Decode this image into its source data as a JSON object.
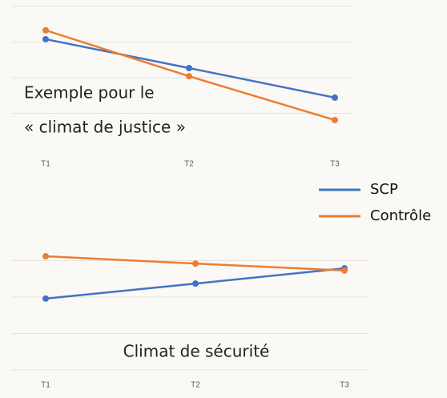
{
  "chart_data": [
    {
      "type": "line",
      "annotations": [
        "Exemple pour le",
        "« climat de justice »"
      ],
      "categories": [
        "T1",
        "T2",
        "T3"
      ],
      "series": [
        {
          "name": "SCP",
          "color": "#4472c4",
          "values": [
            3.08,
            2.27,
            1.44
          ]
        },
        {
          "name": "Contrôle",
          "color": "#ed7d31",
          "values": [
            3.33,
            2.04,
            0.81
          ]
        }
      ],
      "ylim": [
        0,
        4
      ],
      "yticks": [
        1,
        2,
        3,
        4
      ],
      "grid": true,
      "legend": "right"
    },
    {
      "type": "line",
      "annotations": [
        "Climat de sécurité"
      ],
      "categories": [
        "T1",
        "T2",
        "T3"
      ],
      "series": [
        {
          "color": "#4472c4",
          "values": [
            1.96,
            2.37,
            2.79
          ]
        },
        {
          "color": "#ed7d31",
          "values": [
            3.12,
            2.92,
            2.73
          ]
        }
      ],
      "ylim": [
        0,
        4
      ],
      "yticks": [
        0,
        1,
        2,
        3
      ],
      "grid": true
    }
  ]
}
